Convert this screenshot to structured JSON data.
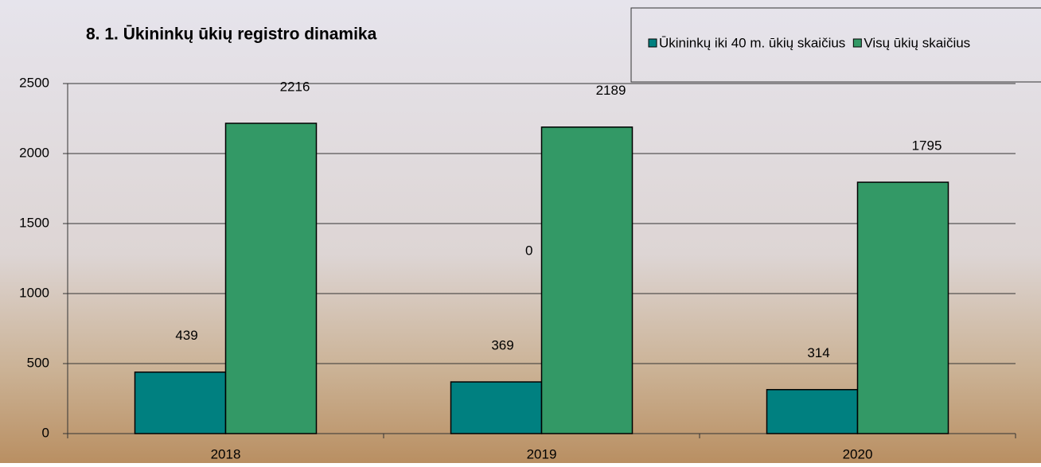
{
  "chart_data": {
    "type": "bar",
    "title": "8. 1. Ūkininkų ūkių registro dinamika",
    "categories": [
      "2018",
      "2019",
      "2020"
    ],
    "series": [
      {
        "name": "Ūkininkų iki 40 m. ūkių skaičius",
        "color": "#008080",
        "values": [
          439,
          369,
          314
        ]
      },
      {
        "name": "Visų ūkių skaičius",
        "color": "#339966",
        "values": [
          2216,
          2189,
          1795
        ]
      }
    ],
    "ylim": [
      0,
      2500
    ],
    "yticks": [
      0,
      500,
      1000,
      1500,
      2000,
      2500
    ],
    "grid": true,
    "annotations": [
      "0"
    ],
    "legend": "top-right"
  }
}
